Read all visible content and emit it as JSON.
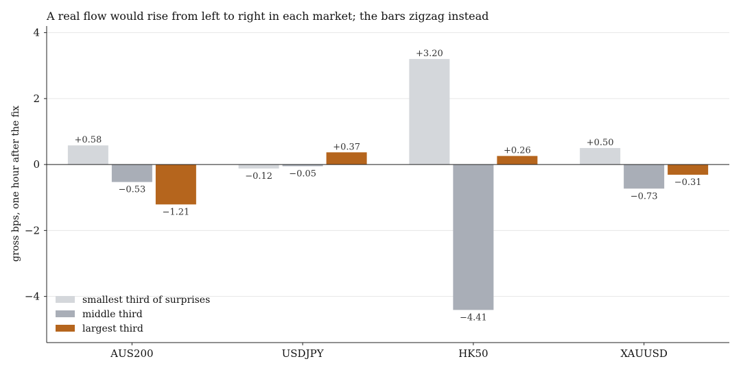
{
  "chart_data": {
    "type": "bar",
    "title": "A real flow would rise from left to right in each market; the bars zigzag instead",
    "xlabel": "",
    "ylabel": "gross bps, one hour after the fix",
    "categories": [
      "AUS200",
      "USDJPY",
      "HK50",
      "XAUUSD"
    ],
    "ylim": [
      -5.4,
      4.2
    ],
    "yticks": [
      -4,
      -2,
      0,
      2,
      4
    ],
    "ytick_labels": [
      "−4",
      "−2",
      "0",
      "2",
      "4"
    ],
    "grid": "horizontal",
    "legend_position": "lower-left",
    "series": [
      {
        "name": "smallest third of surprises",
        "color": "#d4d7db",
        "values": [
          0.58,
          -0.12,
          3.2,
          0.5
        ],
        "labels": [
          "+0.58",
          "−0.12",
          "+3.20",
          "+0.50"
        ]
      },
      {
        "name": "middle third",
        "color": "#a9aeb7",
        "values": [
          -0.53,
          -0.05,
          -4.41,
          -0.73
        ],
        "labels": [
          "−0.53",
          "−0.05",
          "−4.41",
          "−0.73"
        ]
      },
      {
        "name": "largest third",
        "color": "#b5651d",
        "values": [
          -1.21,
          0.37,
          0.26,
          -0.31
        ],
        "labels": [
          "−1.21",
          "+0.37",
          "+0.26",
          "−0.31"
        ]
      }
    ]
  }
}
